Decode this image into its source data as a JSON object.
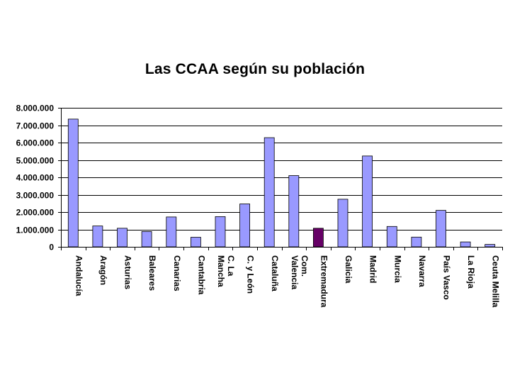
{
  "chart_data": {
    "type": "bar",
    "title": "Las CCAA según su población",
    "xlabel": "",
    "ylabel": "",
    "ylim": [
      0,
      8000000
    ],
    "yticks": [
      0,
      1000000,
      2000000,
      3000000,
      4000000,
      5000000,
      6000000,
      7000000,
      8000000
    ],
    "ytick_labels": [
      "0",
      "1.000.000",
      "2.000.000",
      "3.000.000",
      "4.000.000",
      "5.000.000",
      "6.000.000",
      "7.000.000",
      "8.000.000"
    ],
    "grid": true,
    "legend": "none",
    "categories": [
      [
        "Andalucía"
      ],
      [
        "Aragón"
      ],
      [
        "Asturias"
      ],
      [
        "Baleares"
      ],
      [
        "Canarias"
      ],
      [
        "Cantabria"
      ],
      [
        "C. La",
        "Mancha"
      ],
      [
        "C. y León"
      ],
      [
        "Cataluña"
      ],
      [
        "Com.",
        "Valencia"
      ],
      [
        "Extremadura"
      ],
      [
        "Galicia"
      ],
      [
        "Madrid"
      ],
      [
        "Murcia"
      ],
      [
        "Navarra"
      ],
      [
        "País Vasco"
      ],
      [
        "La Rioja"
      ],
      [
        "Ceuta Melilla"
      ]
    ],
    "values": [
      7350000,
      1200000,
      1070000,
      880000,
      1720000,
      550000,
      1740000,
      2470000,
      6280000,
      4100000,
      1070000,
      2740000,
      5230000,
      1170000,
      560000,
      2100000,
      280000,
      140000
    ],
    "colors": {
      "bar": "#9999ff",
      "highlight": "#660066",
      "bar_stroke": "#000000",
      "grid": "#000000"
    },
    "highlight_index": 10
  }
}
